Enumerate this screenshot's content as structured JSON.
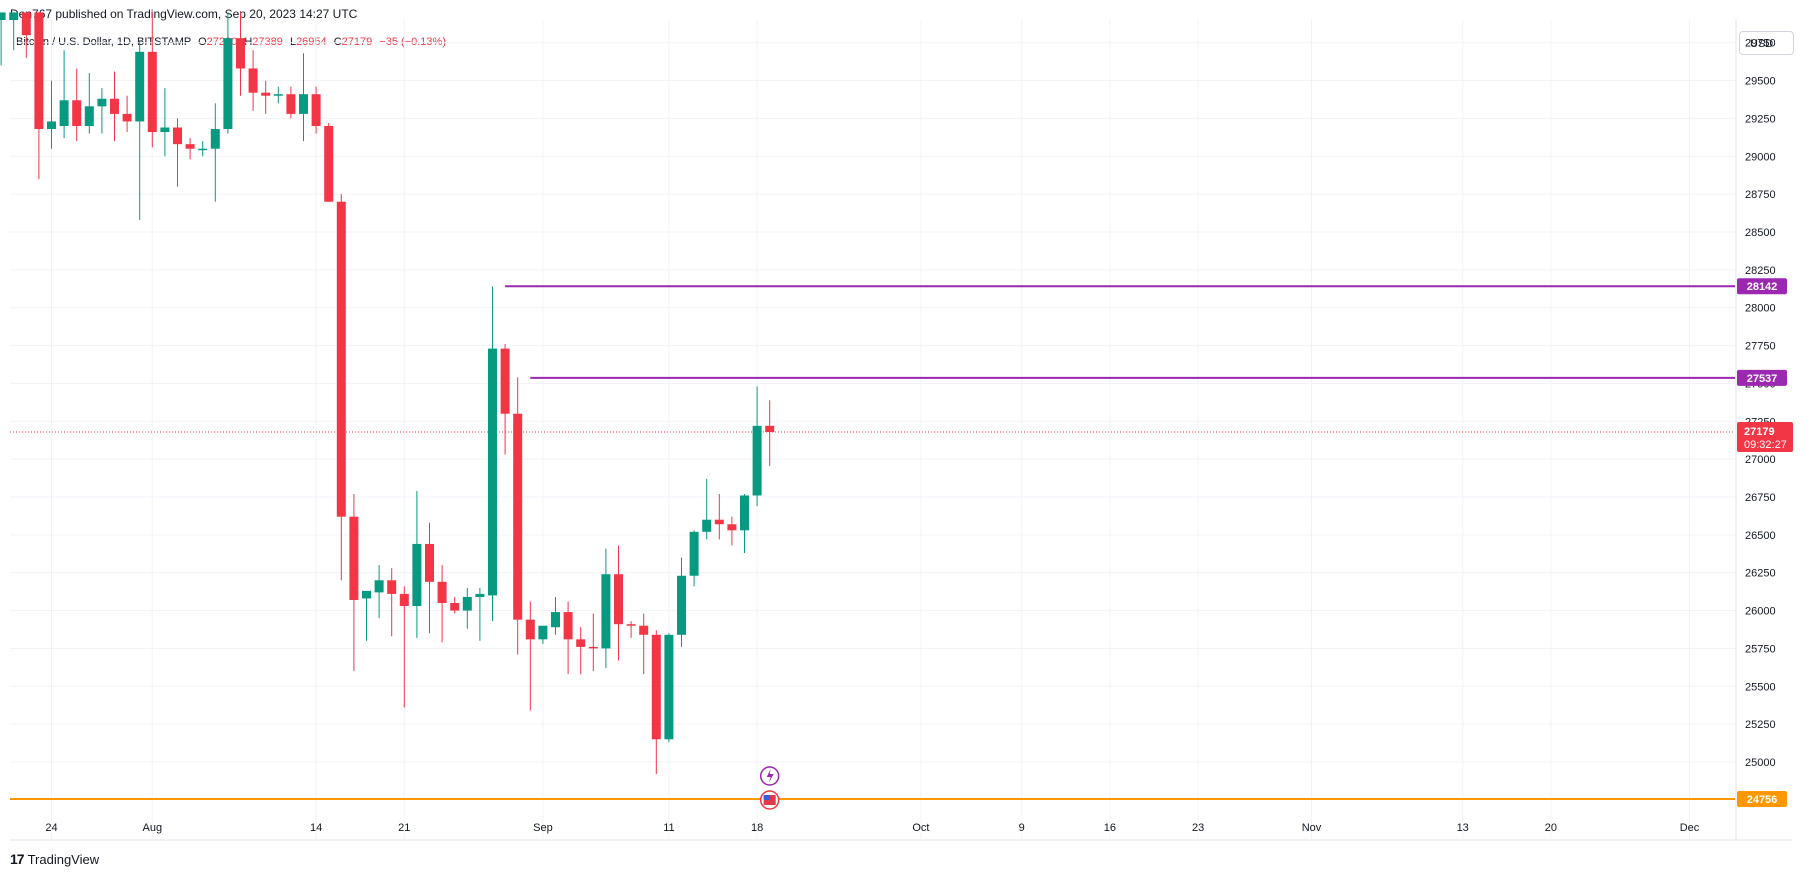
{
  "header": {
    "published": "Den767 published on TradingView.com, Sep 20, 2023 14:27 UTC"
  },
  "legend": {
    "symbol": "Bitcoin / U.S. Dollar, 1D, BITSTAMP",
    "o_label": "O",
    "o_value": "27220",
    "h_label": "H",
    "h_value": "27389",
    "l_label": "L",
    "l_value": "26954",
    "c_label": "C",
    "c_value": "27179",
    "change": "−35 (−0.13%)"
  },
  "currency_button": "USD",
  "footer": {
    "brand": "TradingView",
    "logo_mark": "17"
  },
  "colors": {
    "up": "#089981",
    "down": "#f23645",
    "resistance": "#9c27b0",
    "support": "#ff9800",
    "grid": "#f0f3fa",
    "current_price_line": "#f23645"
  },
  "chart_data": {
    "type": "candlestick",
    "ylim": [
      24650,
      29900
    ],
    "y_ticks": [
      25000,
      25250,
      25500,
      25750,
      26000,
      26250,
      26500,
      26750,
      27000,
      27250,
      27500,
      27750,
      28000,
      28250,
      28500,
      28750,
      29000,
      29250,
      29500,
      29750
    ],
    "x_labels": [
      {
        "label": "24",
        "day": 0
      },
      {
        "label": "Aug",
        "day": 8
      },
      {
        "label": "14",
        "day": 21
      },
      {
        "label": "21",
        "day": 28
      },
      {
        "label": "Sep",
        "day": 39
      },
      {
        "label": "11",
        "day": 49
      },
      {
        "label": "18",
        "day": 56
      },
      {
        "label": "Oct",
        "day": 69
      },
      {
        "label": "9",
        "day": 77
      },
      {
        "label": "16",
        "day": 84
      },
      {
        "label": "23",
        "day": 91
      },
      {
        "label": "Nov",
        "day": 100
      },
      {
        "label": "13",
        "day": 112
      },
      {
        "label": "20",
        "day": 119
      },
      {
        "label": "Dec",
        "day": 130
      }
    ],
    "candles": [
      {
        "o": 29900,
        "h": 29950,
        "l": 29600,
        "c": 29950
      },
      {
        "o": 29900,
        "h": 29950,
        "l": 29700,
        "c": 29950
      },
      {
        "o": 29950,
        "h": 29950,
        "l": 29650,
        "c": 29800
      },
      {
        "o": 29950,
        "h": 29950,
        "l": 28850,
        "c": 29180
      },
      {
        "o": 29180,
        "h": 29500,
        "l": 29050,
        "c": 29230
      },
      {
        "o": 29200,
        "h": 29700,
        "l": 29120,
        "c": 29370
      },
      {
        "o": 29370,
        "h": 29580,
        "l": 29100,
        "c": 29200
      },
      {
        "o": 29200,
        "h": 29550,
        "l": 29150,
        "c": 29330
      },
      {
        "o": 29330,
        "h": 29450,
        "l": 29150,
        "c": 29380
      },
      {
        "o": 29380,
        "h": 29560,
        "l": 29100,
        "c": 29280
      },
      {
        "o": 29280,
        "h": 29400,
        "l": 29160,
        "c": 29230
      },
      {
        "o": 29230,
        "h": 29760,
        "l": 28580,
        "c": 29690
      },
      {
        "o": 29690,
        "h": 29950,
        "l": 29060,
        "c": 29160
      },
      {
        "o": 29160,
        "h": 29450,
        "l": 29000,
        "c": 29190
      },
      {
        "o": 29190,
        "h": 29250,
        "l": 28800,
        "c": 29080
      },
      {
        "o": 29080,
        "h": 29120,
        "l": 28980,
        "c": 29050
      },
      {
        "o": 29050,
        "h": 29100,
        "l": 29000,
        "c": 29050
      },
      {
        "o": 29050,
        "h": 29350,
        "l": 28700,
        "c": 29180
      },
      {
        "o": 29180,
        "h": 29950,
        "l": 29150,
        "c": 29780
      },
      {
        "o": 29780,
        "h": 29950,
        "l": 29400,
        "c": 29580
      },
      {
        "o": 29580,
        "h": 29700,
        "l": 29300,
        "c": 29420
      },
      {
        "o": 29420,
        "h": 29500,
        "l": 29280,
        "c": 29400
      },
      {
        "o": 29400,
        "h": 29460,
        "l": 29350,
        "c": 29410
      },
      {
        "o": 29410,
        "h": 29460,
        "l": 29250,
        "c": 29280
      },
      {
        "o": 29280,
        "h": 29680,
        "l": 29100,
        "c": 29410
      },
      {
        "o": 29410,
        "h": 29460,
        "l": 29150,
        "c": 29200
      },
      {
        "o": 29200,
        "h": 29220,
        "l": 28700,
        "c": 28700
      },
      {
        "o": 28700,
        "h": 28750,
        "l": 26200,
        "c": 26620
      },
      {
        "o": 26620,
        "h": 26770,
        "l": 25600,
        "c": 26070
      },
      {
        "o": 26080,
        "h": 26100,
        "l": 25800,
        "c": 26130
      },
      {
        "o": 26120,
        "h": 26300,
        "l": 25950,
        "c": 26200
      },
      {
        "o": 26200,
        "h": 26280,
        "l": 25830,
        "c": 26110
      },
      {
        "o": 26110,
        "h": 26160,
        "l": 25360,
        "c": 26030
      },
      {
        "o": 26030,
        "h": 26790,
        "l": 25820,
        "c": 26440
      },
      {
        "o": 26440,
        "h": 26580,
        "l": 25850,
        "c": 26190
      },
      {
        "o": 26190,
        "h": 26300,
        "l": 25790,
        "c": 26050
      },
      {
        "o": 26050,
        "h": 26090,
        "l": 25980,
        "c": 26000
      },
      {
        "o": 26000,
        "h": 26150,
        "l": 25880,
        "c": 26090
      },
      {
        "o": 26090,
        "h": 26150,
        "l": 25800,
        "c": 26110
      },
      {
        "o": 26100,
        "h": 28140,
        "l": 25930,
        "c": 27730
      },
      {
        "o": 27730,
        "h": 27760,
        "l": 27030,
        "c": 27300
      },
      {
        "o": 27300,
        "h": 27540,
        "l": 25710,
        "c": 25940
      },
      {
        "o": 25940,
        "h": 26060,
        "l": 25340,
        "c": 25810
      },
      {
        "o": 25810,
        "h": 25890,
        "l": 25780,
        "c": 25900
      },
      {
        "o": 25890,
        "h": 26090,
        "l": 25840,
        "c": 25990
      },
      {
        "o": 25990,
        "h": 26060,
        "l": 25580,
        "c": 25810
      },
      {
        "o": 25810,
        "h": 25890,
        "l": 25580,
        "c": 25760
      },
      {
        "o": 25760,
        "h": 25980,
        "l": 25600,
        "c": 25750
      },
      {
        "o": 25750,
        "h": 26410,
        "l": 25620,
        "c": 26240
      },
      {
        "o": 26240,
        "h": 26430,
        "l": 25670,
        "c": 25910
      },
      {
        "o": 25910,
        "h": 25930,
        "l": 25820,
        "c": 25900
      },
      {
        "o": 25900,
        "h": 25980,
        "l": 25580,
        "c": 25840
      },
      {
        "o": 25840,
        "h": 25870,
        "l": 24920,
        "c": 25150
      },
      {
        "o": 25150,
        "h": 25850,
        "l": 25130,
        "c": 25840
      },
      {
        "o": 25840,
        "h": 26350,
        "l": 25760,
        "c": 26230
      },
      {
        "o": 26230,
        "h": 26530,
        "l": 26160,
        "c": 26520
      },
      {
        "o": 26520,
        "h": 26870,
        "l": 26470,
        "c": 26600
      },
      {
        "o": 26600,
        "h": 26770,
        "l": 26470,
        "c": 26570
      },
      {
        "o": 26570,
        "h": 26620,
        "l": 26430,
        "c": 26530
      },
      {
        "o": 26530,
        "h": 26770,
        "l": 26380,
        "c": 26760
      },
      {
        "o": 26760,
        "h": 27480,
        "l": 26690,
        "c": 27220
      },
      {
        "o": 27220,
        "h": 27389,
        "l": 26954,
        "c": 27179
      }
    ],
    "levels": [
      {
        "price": 28142,
        "label": "28142",
        "start_day": 40
      },
      {
        "price": 27537,
        "label": "27537",
        "start_day": 42
      },
      {
        "price": 24756,
        "label": "24756",
        "start_day": -1
      }
    ],
    "current_price": {
      "value": 27179,
      "label": "27179",
      "countdown": "09:32:27"
    }
  }
}
